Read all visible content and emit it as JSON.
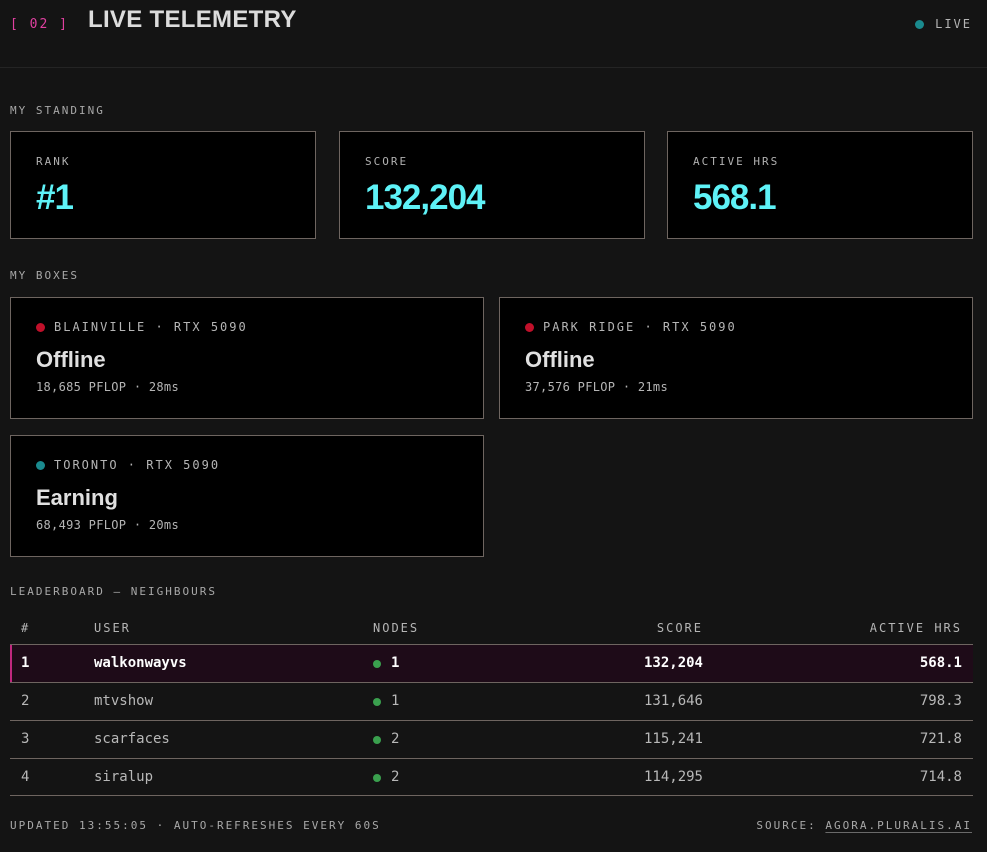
{
  "header": {
    "section_num": "[ 02 ]",
    "title": "LIVE TELEMETRY",
    "live_label": "LIVE",
    "live_color": "#1a8a8e"
  },
  "standing": {
    "label": "MY STANDING",
    "cards": [
      {
        "label": "RANK",
        "value": "#1"
      },
      {
        "label": "SCORE",
        "value": "132,204"
      },
      {
        "label": "ACTIVE HRS",
        "value": "568.1"
      }
    ]
  },
  "boxes": {
    "label": "MY BOXES",
    "items": [
      {
        "name": "BLAINVILLE · RTX 5090",
        "status": "Offline",
        "metrics": "18,685 PFLOP · 28ms",
        "dot_color": "#c0102a"
      },
      {
        "name": "PARK RIDGE · RTX 5090",
        "status": "Offline",
        "metrics": "37,576 PFLOP · 21ms",
        "dot_color": "#c0102a"
      },
      {
        "name": "TORONTO · RTX 5090",
        "status": "Earning",
        "metrics": "68,493 PFLOP · 20ms",
        "dot_color": "#1a8a8e"
      }
    ]
  },
  "leaderboard": {
    "label": "LEADERBOARD — NEIGHBOURS",
    "columns": {
      "rank": "#",
      "user": "USER",
      "nodes": "NODES",
      "score": "SCORE",
      "hrs": "ACTIVE HRS"
    },
    "rows": [
      {
        "rank": "1",
        "user": "walkonwayvs",
        "nodes": "1",
        "score": "132,204",
        "hrs": "568.1"
      },
      {
        "rank": "2",
        "user": "mtvshow",
        "nodes": "1",
        "score": "131,646",
        "hrs": "798.3"
      },
      {
        "rank": "3",
        "user": "scarfaces",
        "nodes": "2",
        "score": "115,241",
        "hrs": "721.8"
      },
      {
        "rank": "4",
        "user": "siralup",
        "nodes": "2",
        "score": "114,295",
        "hrs": "714.8"
      }
    ]
  },
  "footer": {
    "updated": "UPDATED 13:55:05 · AUTO-REFRESHES EVERY 60S",
    "source_label": "SOURCE:",
    "source_link": "AGORA.PLURALIS.AI"
  },
  "colors": {
    "accent": "#5ef2f7",
    "magenta": "#e040a0",
    "offline": "#c0102a",
    "online": "#1a8a8e",
    "node_dot": "#3aa04e"
  }
}
